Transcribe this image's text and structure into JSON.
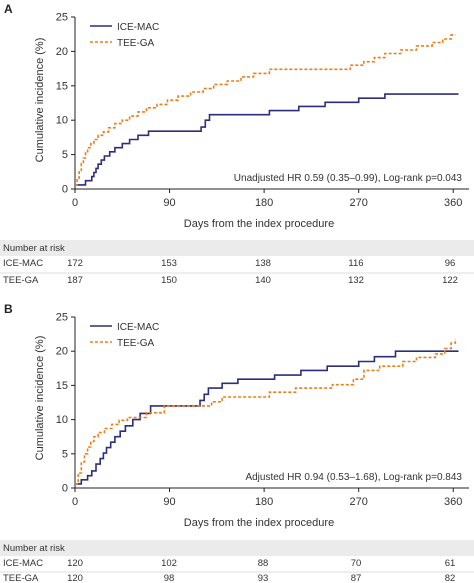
{
  "colors": {
    "ice": "#2d2e7a",
    "tee": "#ee7d16",
    "risk_band": "#ebebeb",
    "axis": "#222222"
  },
  "panels": [
    {
      "letter": "A",
      "annotation": "Unadjusted HR 0.59 (0.35–0.99), Log-rank p=0.043",
      "risk_table": {
        "title": "Number at risk",
        "rows": [
          {
            "label": "ICE-MAC",
            "values": [
              "172",
              "153",
              "138",
              "116",
              "96"
            ]
          },
          {
            "label": "TEE-GA",
            "values": [
              "187",
              "150",
              "140",
              "132",
              "122"
            ]
          }
        ]
      }
    },
    {
      "letter": "B",
      "annotation": "Adjusted HR 0.94 (0.53–1.68), Log-rank p=0.843",
      "risk_table": {
        "title": "Number at risk",
        "rows": [
          {
            "label": "ICE-MAC",
            "values": [
              "120",
              "102",
              "88",
              "70",
              "61"
            ]
          },
          {
            "label": "TEE-GA",
            "values": [
              "120",
              "98",
              "93",
              "87",
              "82"
            ]
          }
        ]
      }
    }
  ],
  "chart_data": [
    {
      "type": "line",
      "step": true,
      "ylabel": "Cumulative incidence (%)",
      "xlabel": "Days from the index procedure",
      "xlim": [
        0,
        375
      ],
      "ylim": [
        0,
        25
      ],
      "xticks": [
        0,
        90,
        180,
        270,
        360
      ],
      "yticks": [
        0,
        5,
        10,
        15,
        20,
        25
      ],
      "legend": "top-left",
      "series": [
        {
          "name": "ICE-MAC",
          "style": "solid",
          "color": "#2d2e7a",
          "points": [
            [
              0,
              0.6
            ],
            [
              8,
              0.6
            ],
            [
              10,
              1.2
            ],
            [
              14,
              1.2
            ],
            [
              16,
              1.8
            ],
            [
              18,
              2.4
            ],
            [
              20,
              3.0
            ],
            [
              22,
              3.6
            ],
            [
              25,
              4.2
            ],
            [
              28,
              4.8
            ],
            [
              33,
              5.4
            ],
            [
              38,
              6.0
            ],
            [
              45,
              6.6
            ],
            [
              52,
              7.2
            ],
            [
              60,
              7.8
            ],
            [
              70,
              8.4
            ],
            [
              110,
              8.4
            ],
            [
              120,
              9.0
            ],
            [
              124,
              10.0
            ],
            [
              128,
              10.8
            ],
            [
              155,
              10.8
            ],
            [
              185,
              11.4
            ],
            [
              213,
              12.0
            ],
            [
              238,
              12.6
            ],
            [
              270,
              13.2
            ],
            [
              295,
              13.8
            ],
            [
              365,
              13.8
            ]
          ]
        },
        {
          "name": "TEE-GA",
          "style": "dashed",
          "color": "#ee7d16",
          "points": [
            [
              0,
              0.6
            ],
            [
              2,
              1.6
            ],
            [
              4,
              2.7
            ],
            [
              6,
              3.7
            ],
            [
              8,
              4.5
            ],
            [
              10,
              5.3
            ],
            [
              12,
              6.0
            ],
            [
              15,
              6.6
            ],
            [
              18,
              7.2
            ],
            [
              22,
              7.8
            ],
            [
              27,
              8.3
            ],
            [
              32,
              8.9
            ],
            [
              38,
              9.5
            ],
            [
              45,
              10.0
            ],
            [
              52,
              10.6
            ],
            [
              60,
              11.2
            ],
            [
              68,
              11.8
            ],
            [
              78,
              12.3
            ],
            [
              88,
              12.9
            ],
            [
              98,
              13.5
            ],
            [
              110,
              14.1
            ],
            [
              122,
              14.6
            ],
            [
              132,
              15.2
            ],
            [
              145,
              15.7
            ],
            [
              158,
              16.3
            ],
            [
              170,
              16.8
            ],
            [
              185,
              17.4
            ],
            [
              250,
              17.4
            ],
            [
              262,
              18.0
            ],
            [
              275,
              18.5
            ],
            [
              285,
              19.1
            ],
            [
              295,
              19.7
            ],
            [
              310,
              20.2
            ],
            [
              325,
              20.8
            ],
            [
              340,
              21.3
            ],
            [
              350,
              21.8
            ],
            [
              358,
              22.4
            ],
            [
              362,
              22.4
            ]
          ]
        }
      ]
    },
    {
      "type": "line",
      "step": true,
      "ylabel": "Cumulative incidence (%)",
      "xlabel": "Days from the index procedure",
      "xlim": [
        0,
        375
      ],
      "ylim": [
        0,
        25
      ],
      "xticks": [
        0,
        90,
        180,
        270,
        360
      ],
      "yticks": [
        0,
        5,
        10,
        15,
        20,
        25
      ],
      "legend": "top-left",
      "series": [
        {
          "name": "ICE-MAC",
          "style": "solid",
          "color": "#2d2e7a",
          "points": [
            [
              0,
              0.6
            ],
            [
              6,
              1.2
            ],
            [
              12,
              1.8
            ],
            [
              16,
              2.5
            ],
            [
              20,
              3.5
            ],
            [
              24,
              4.3
            ],
            [
              27,
              5.1
            ],
            [
              30,
              5.9
            ],
            [
              34,
              6.7
            ],
            [
              38,
              7.5
            ],
            [
              43,
              8.3
            ],
            [
              48,
              9.1
            ],
            [
              55,
              10.0
            ],
            [
              62,
              10.9
            ],
            [
              72,
              12.0
            ],
            [
              115,
              12.0
            ],
            [
              119,
              12.8
            ],
            [
              123,
              13.7
            ],
            [
              127,
              14.6
            ],
            [
              140,
              15.3
            ],
            [
              155,
              15.9
            ],
            [
              190,
              16.5
            ],
            [
              215,
              17.2
            ],
            [
              240,
              17.8
            ],
            [
              270,
              18.5
            ],
            [
              285,
              19.2
            ],
            [
              305,
              20.0
            ],
            [
              365,
              20.0
            ]
          ]
        },
        {
          "name": "TEE-GA",
          "style": "dashed",
          "color": "#ee7d16",
          "points": [
            [
              0,
              0.6
            ],
            [
              3,
              2.2
            ],
            [
              6,
              3.8
            ],
            [
              9,
              5.0
            ],
            [
              12,
              6.0
            ],
            [
              15,
              6.8
            ],
            [
              18,
              7.5
            ],
            [
              22,
              8.1
            ],
            [
              28,
              8.7
            ],
            [
              35,
              9.3
            ],
            [
              42,
              9.9
            ],
            [
              50,
              10.3
            ],
            [
              60,
              10.3
            ],
            [
              68,
              11.0
            ],
            [
              85,
              12.0
            ],
            [
              120,
              12.0
            ],
            [
              130,
              12.6
            ],
            [
              140,
              13.3
            ],
            [
              165,
              13.3
            ],
            [
              185,
              14.0
            ],
            [
              210,
              14.6
            ],
            [
              245,
              15.1
            ],
            [
              265,
              15.9
            ],
            [
              275,
              17.2
            ],
            [
              290,
              17.8
            ],
            [
              312,
              18.5
            ],
            [
              325,
              19.1
            ],
            [
              343,
              19.6
            ],
            [
              352,
              20.4
            ],
            [
              358,
              21.2
            ],
            [
              362,
              21.8
            ]
          ]
        }
      ]
    }
  ]
}
